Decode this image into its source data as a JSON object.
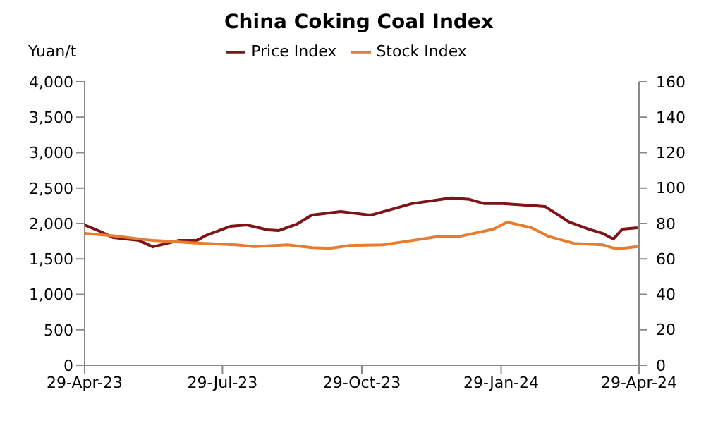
{
  "chart_data": {
    "type": "line",
    "title": "China Coking Coal Index",
    "ylabel": "Yuan/t",
    "xlim": [
      "2023-04-29",
      "2024-04-29"
    ],
    "xticks": [
      {
        "value": "2023-04-29",
        "label": "29-Apr-23"
      },
      {
        "value": "2023-07-29",
        "label": "29-Jul-23"
      },
      {
        "value": "2023-10-29",
        "label": "29-Oct-23"
      },
      {
        "value": "2024-01-29",
        "label": "29-Jan-24"
      },
      {
        "value": "2024-04-29",
        "label": "29-Apr-24"
      }
    ],
    "ylim": [
      0,
      4000
    ],
    "yticks": [
      {
        "value": 0,
        "label": "0"
      },
      {
        "value": 500,
        "label": "500"
      },
      {
        "value": 1000,
        "label": "1,000"
      },
      {
        "value": 1500,
        "label": "1,500"
      },
      {
        "value": 2000,
        "label": "2,000"
      },
      {
        "value": 2500,
        "label": "2,500"
      },
      {
        "value": 3000,
        "label": "3,000"
      },
      {
        "value": 3500,
        "label": "3,500"
      },
      {
        "value": 4000,
        "label": "4,000"
      }
    ],
    "y2lim": [
      0,
      160
    ],
    "y2ticks": [
      0,
      20,
      40,
      60,
      80,
      100,
      120,
      140,
      160
    ],
    "grid": false,
    "legend": "top",
    "marker": "none",
    "line_style": "solid",
    "series": [
      {
        "name": "Price Index",
        "color": "#7f1416",
        "x": [
          "2023-04-29",
          "2023-05-08",
          "2023-05-18",
          "2023-06-04",
          "2023-06-13",
          "2023-06-30",
          "2023-07-12",
          "2023-07-18",
          "2023-08-03",
          "2023-08-14",
          "2023-08-28",
          "2023-09-04",
          "2023-09-16",
          "2023-09-26",
          "2023-10-15",
          "2023-11-03",
          "2023-11-06",
          "2023-12-01",
          "2023-12-27",
          "2024-01-08",
          "2024-01-18",
          "2024-01-30",
          "2024-02-27",
          "2024-03-14",
          "2024-03-27",
          "2024-04-05",
          "2024-04-12",
          "2024-04-18",
          "2024-04-28"
        ],
        "values": [
          1980,
          1900,
          1800,
          1760,
          1670,
          1760,
          1760,
          1830,
          1960,
          1980,
          1910,
          1900,
          1990,
          2120,
          2170,
          2120,
          2130,
          2280,
          2360,
          2340,
          2280,
          2280,
          2240,
          2020,
          1920,
          1860,
          1780,
          1920,
          1940
        ]
      },
      {
        "name": "Stock Index",
        "color": "#e97b2c",
        "axis": "y2",
        "x": [
          "2023-04-29",
          "2023-05-18",
          "2023-06-13",
          "2023-07-12",
          "2023-08-07",
          "2023-08-19",
          "2023-09-10",
          "2023-09-26",
          "2023-10-08",
          "2023-10-21",
          "2023-11-12",
          "2023-11-25",
          "2023-12-20",
          "2024-01-02",
          "2024-01-24",
          "2024-02-02",
          "2024-02-18",
          "2024-02-29",
          "2024-03-17",
          "2024-04-05",
          "2024-04-14",
          "2024-04-28"
        ],
        "values": [
          74.4,
          73,
          70.4,
          69,
          68,
          67,
          68,
          66.4,
          66,
          67.6,
          68,
          69.6,
          72.8,
          72.8,
          76.8,
          80.8,
          77.6,
          72.8,
          68.8,
          68,
          65.6,
          67
        ]
      }
    ]
  }
}
